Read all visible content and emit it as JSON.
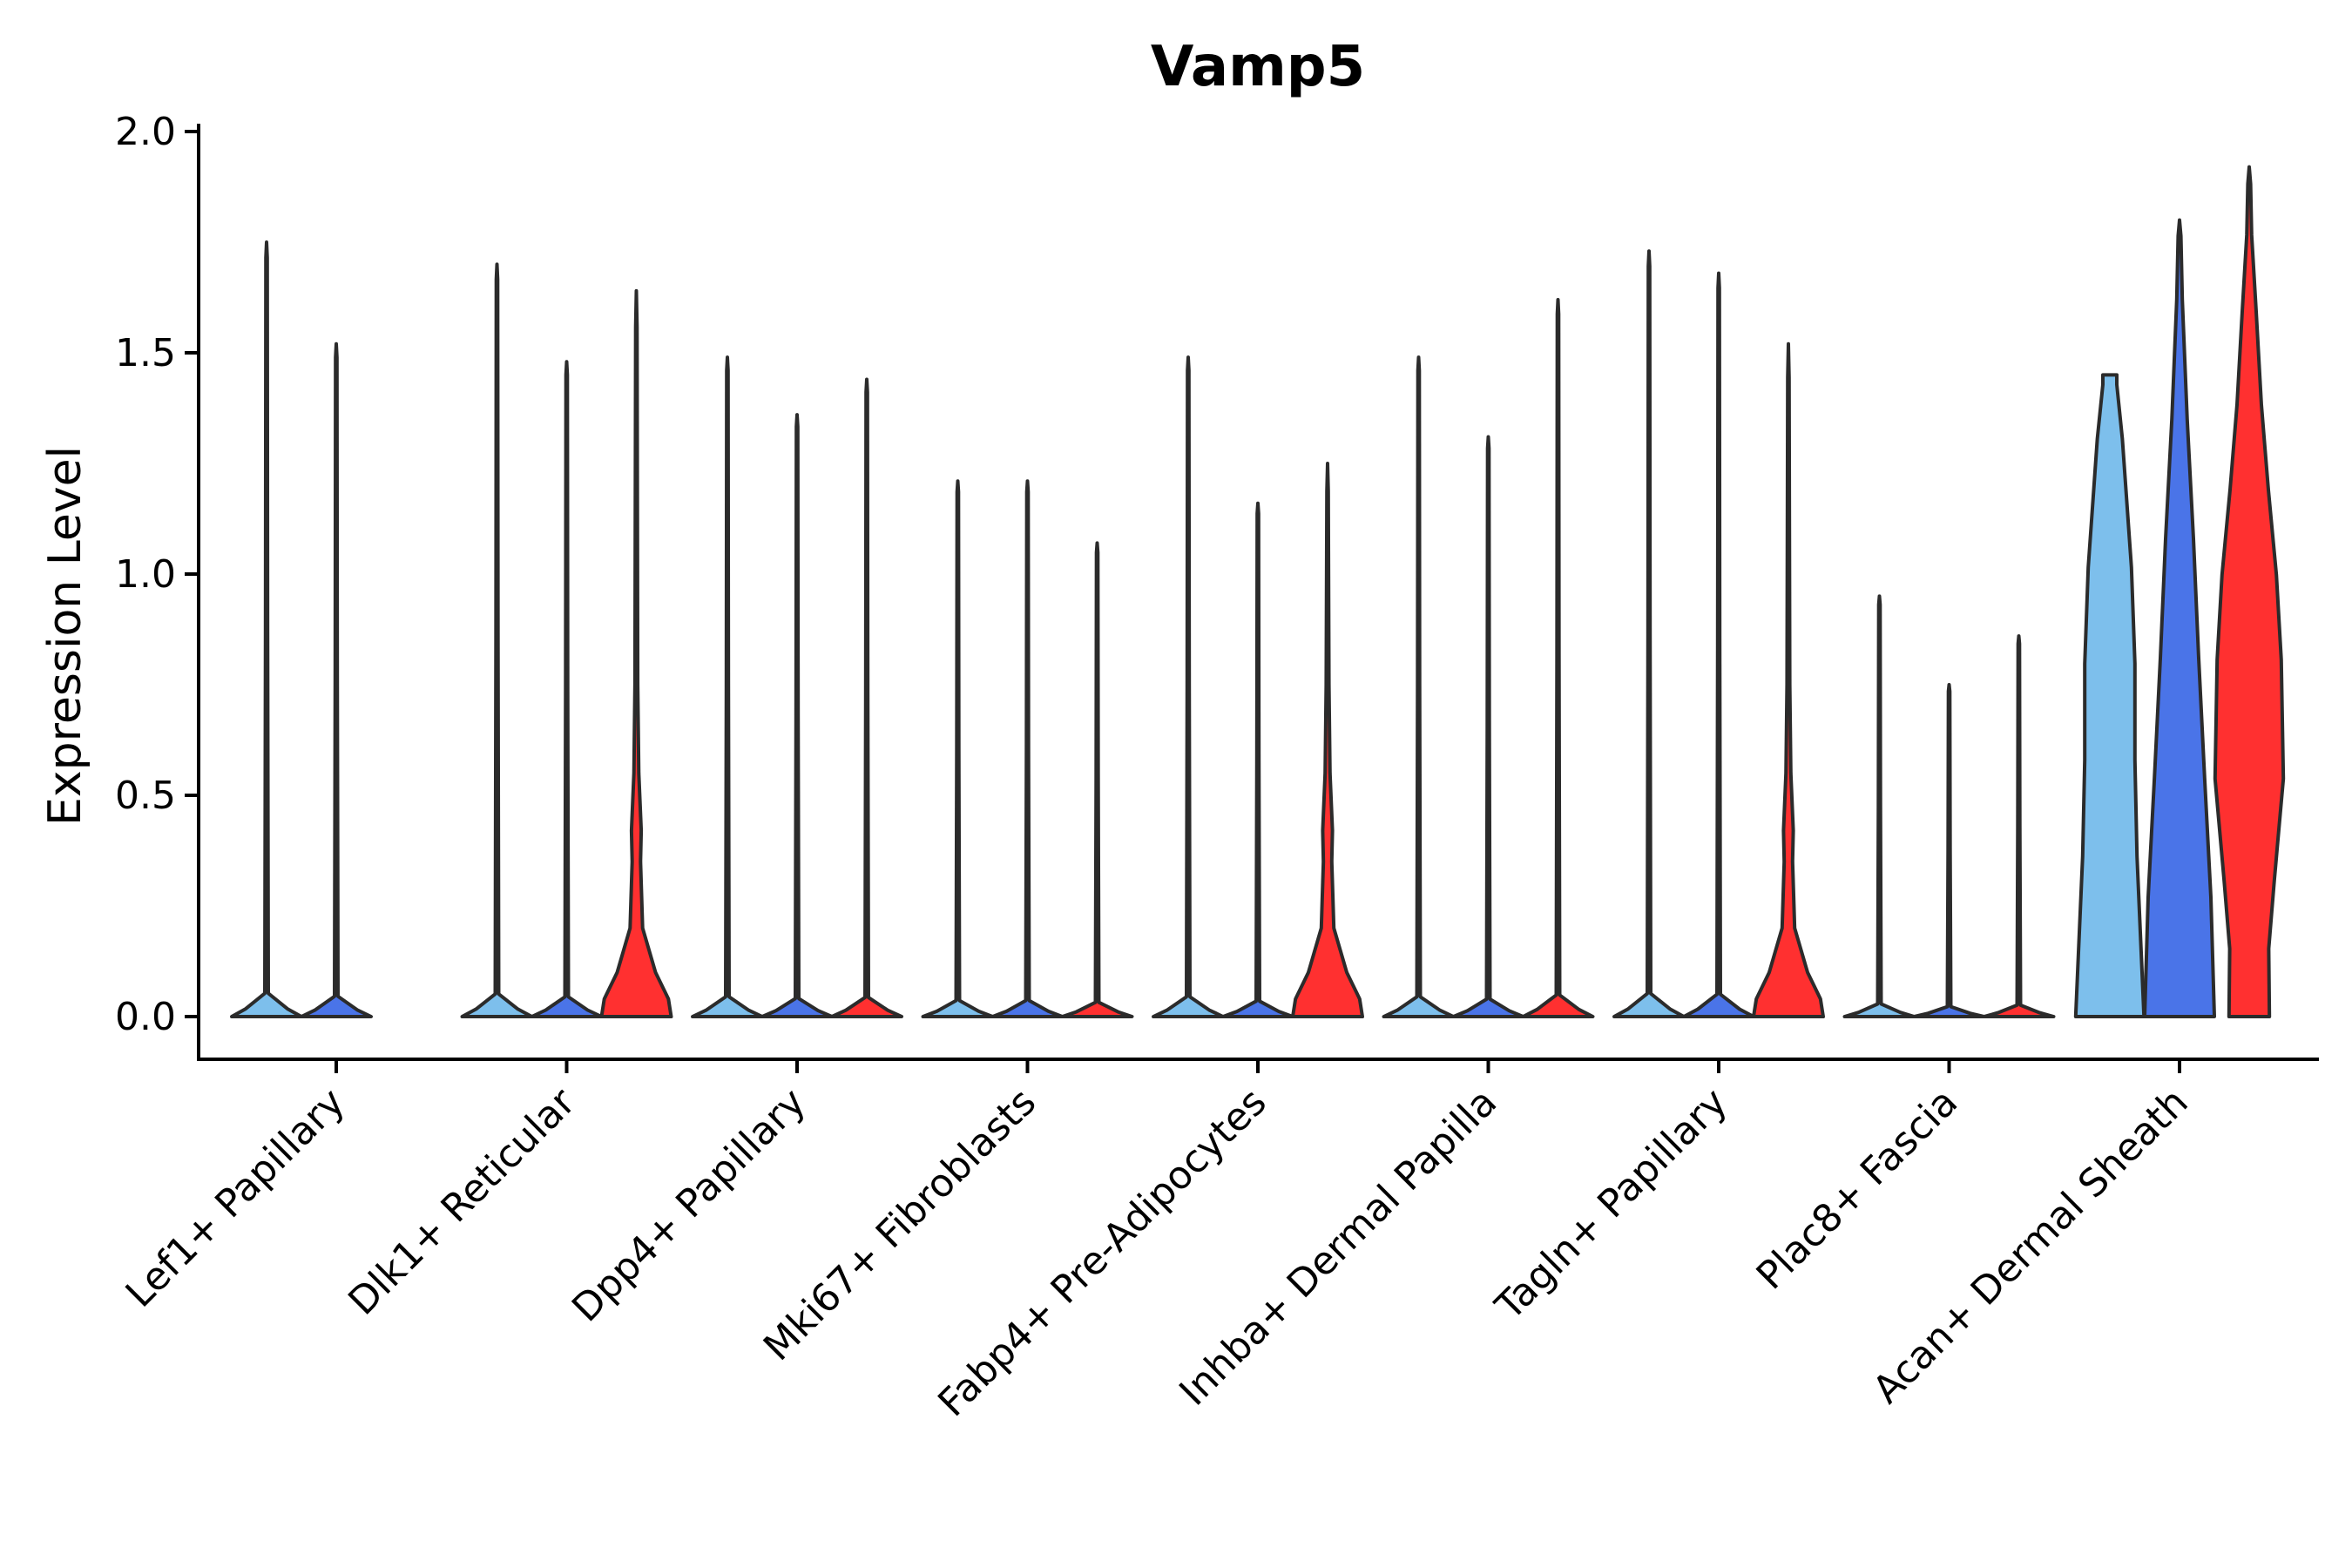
{
  "chart_data": {
    "type": "violin",
    "title": "Vamp5",
    "xlabel": "",
    "ylabel": "Expression Level",
    "ylim": [
      -0.1,
      2.0
    ],
    "yticks": [
      "0.0",
      "0.5",
      "1.0",
      "1.5",
      "2.0"
    ],
    "grid": false,
    "legend": "none",
    "categories": [
      "Lef1+ Papillary",
      "Dlk1+ Reticular",
      "Dpp4+ Papillary",
      "Mki67+ Fibroblasts",
      "Fabp4+ Pre-Adipocytes",
      "Inhba+ Dermal Papilla",
      "Tagln+ Papillary",
      "Plac8+ Fascia",
      "Acan+ Dermal Sheath"
    ],
    "colors": {
      "group1": "#7dbfec",
      "group2": "#4a74e8",
      "group3": "#ff3030"
    },
    "violins": [
      [
        {
          "max": 1.75,
          "color": "#7dbfec",
          "profile": "spike"
        },
        {
          "max": 1.52,
          "color": "#4a74e8",
          "profile": "spike"
        },
        null
      ],
      [
        {
          "max": 1.7,
          "color": "#7dbfec",
          "profile": "spike"
        },
        {
          "max": 1.48,
          "color": "#4a74e8",
          "profile": "spike"
        },
        {
          "max": 1.64,
          "color": "#ff3030",
          "profile": "lowbulge"
        }
      ],
      [
        {
          "max": 1.49,
          "color": "#7dbfec",
          "profile": "spike"
        },
        {
          "max": 1.36,
          "color": "#4a74e8",
          "profile": "spike"
        },
        {
          "max": 1.44,
          "color": "#ff3030",
          "profile": "spike"
        }
      ],
      [
        {
          "max": 1.21,
          "color": "#7dbfec",
          "profile": "spike"
        },
        {
          "max": 1.21,
          "color": "#4a74e8",
          "profile": "spike"
        },
        {
          "max": 1.07,
          "color": "#ff3030",
          "profile": "spike"
        }
      ],
      [
        {
          "max": 1.49,
          "color": "#7dbfec",
          "profile": "spike"
        },
        {
          "max": 1.16,
          "color": "#4a74e8",
          "profile": "spike"
        },
        {
          "max": 1.25,
          "color": "#ff3030",
          "profile": "lowbulge"
        }
      ],
      [
        {
          "max": 1.49,
          "color": "#7dbfec",
          "profile": "spike"
        },
        {
          "max": 1.31,
          "color": "#4a74e8",
          "profile": "spike"
        },
        {
          "max": 1.62,
          "color": "#ff3030",
          "profile": "spike"
        }
      ],
      [
        {
          "max": 1.73,
          "color": "#7dbfec",
          "profile": "spike"
        },
        {
          "max": 1.68,
          "color": "#4a74e8",
          "profile": "spike"
        },
        {
          "max": 1.52,
          "color": "#ff3030",
          "profile": "lowbulge"
        }
      ],
      [
        {
          "max": 0.95,
          "color": "#7dbfec",
          "profile": "spike"
        },
        {
          "max": 0.75,
          "color": "#4a74e8",
          "profile": "spike"
        },
        {
          "max": 0.86,
          "color": "#ff3030",
          "profile": "spike"
        }
      ],
      [
        {
          "max": 1.45,
          "color": "#7dbfec",
          "profile": "wide"
        },
        {
          "max": 1.8,
          "color": "#4a74e8",
          "profile": "tall"
        },
        {
          "max": 1.92,
          "color": "#ff3030",
          "profile": "widebelly"
        }
      ]
    ]
  }
}
